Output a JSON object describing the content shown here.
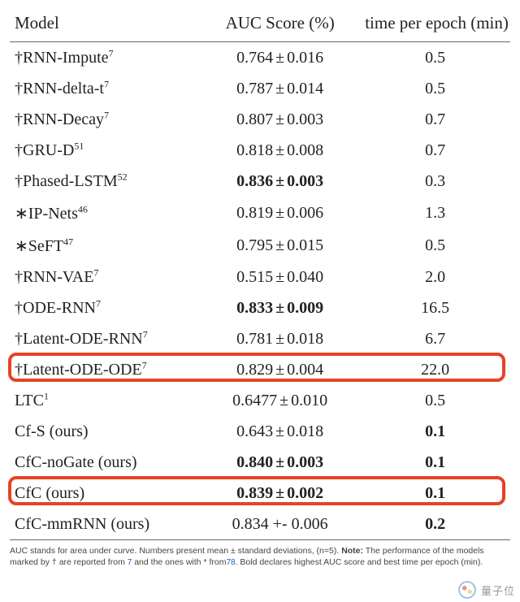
{
  "table": {
    "columns": {
      "model": "Model",
      "auc": "AUC Score (%)",
      "time": "time per epoch (min)"
    },
    "font_family": "Palatino",
    "header_fontsize": 21,
    "cell_fontsize": 20,
    "border_color": "#666666",
    "highlight_color": "#e74226",
    "highlight_border_width": 4,
    "highlight_border_radius": 10,
    "background_color": "#ffffff",
    "text_color": "#222222",
    "col_widths_pct": [
      38,
      32,
      30
    ],
    "rows": [
      {
        "prefix": "†",
        "name": "RNN-Impute",
        "sup": "7",
        "auc_mean": "0.764",
        "auc_std": "0.016",
        "auc_bold": false,
        "time": "0.5",
        "time_bold": false
      },
      {
        "prefix": "†",
        "name": "RNN-delta-t",
        "sup": "7",
        "auc_mean": "0.787",
        "auc_std": "0.014",
        "auc_bold": false,
        "time": "0.5",
        "time_bold": false
      },
      {
        "prefix": "†",
        "name": "RNN-Decay",
        "sup": "7",
        "auc_mean": "0.807",
        "auc_std": "0.003",
        "auc_bold": false,
        "time": "0.7",
        "time_bold": false
      },
      {
        "prefix": "†",
        "name": "GRU-D",
        "sup": "51",
        "auc_mean": "0.818",
        "auc_std": "0.008",
        "auc_bold": false,
        "time": "0.7",
        "time_bold": false
      },
      {
        "prefix": "†",
        "name": "Phased-LSTM",
        "sup": "52",
        "auc_mean": "0.836",
        "auc_std": "0.003",
        "auc_bold": true,
        "time": "0.3",
        "time_bold": false
      },
      {
        "prefix": "∗",
        "name": "IP-Nets",
        "sup": "46",
        "auc_mean": "0.819",
        "auc_std": "0.006",
        "auc_bold": false,
        "time": "1.3",
        "time_bold": false
      },
      {
        "prefix": "∗",
        "name": "SeFT",
        "sup": "47",
        "auc_mean": "0.795",
        "auc_std": "0.015",
        "auc_bold": false,
        "time": "0.5",
        "time_bold": false
      },
      {
        "prefix": "†",
        "name": "RNN-VAE",
        "sup": "7",
        "auc_mean": "0.515",
        "auc_std": "0.040",
        "auc_bold": false,
        "time": "2.0",
        "time_bold": false
      },
      {
        "prefix": "†",
        "name": "ODE-RNN",
        "sup": "7",
        "auc_mean": "0.833",
        "auc_std": "0.009",
        "auc_bold": true,
        "time": "16.5",
        "time_bold": false
      },
      {
        "prefix": "†",
        "name": "Latent-ODE-RNN",
        "sup": "7",
        "auc_mean": "0.781",
        "auc_std": "0.018",
        "auc_bold": false,
        "time": "6.7",
        "time_bold": false
      },
      {
        "prefix": "†",
        "name": "Latent-ODE-ODE",
        "sup": "7",
        "auc_mean": "0.829",
        "auc_std": "0.004",
        "auc_bold": false,
        "time": "22.0",
        "time_bold": false,
        "highlight": true
      },
      {
        "prefix": "",
        "name": "LTC",
        "sup": "1",
        "auc_mean": "0.6477",
        "auc_std": "0.010",
        "auc_bold": false,
        "time": "0.5",
        "time_bold": false
      },
      {
        "prefix": "",
        "name": "Cf-S (ours)",
        "sup": "",
        "auc_mean": "0.643",
        "auc_std": "0.018",
        "auc_bold": false,
        "time": "0.1",
        "time_bold": true
      },
      {
        "prefix": "",
        "name": "CfC-noGate (ours)",
        "sup": "",
        "auc_mean": "0.840",
        "auc_std": "0.003",
        "auc_bold": true,
        "time": "0.1",
        "time_bold": true
      },
      {
        "prefix": "",
        "name": "CfC (ours)",
        "sup": "",
        "auc_mean": "0.839",
        "auc_std": "0.002",
        "auc_bold": true,
        "time": "0.1",
        "time_bold": true,
        "highlight": true
      },
      {
        "prefix": "",
        "name": "CfC-mmRNN (ours)",
        "sup": "",
        "auc_mean": "0.834 +- 0.006",
        "auc_std": null,
        "auc_bold": false,
        "time": "0.2",
        "time_bold": true
      }
    ]
  },
  "caption": {
    "part1": "AUC stands for area under curve. Numbers present mean ± standard deviations, (n=5). ",
    "note_label": "Note:",
    "part2": " The performance of the models marked by † are reported from ",
    "ref1": "7",
    "part3": " and the ones with * from",
    "ref2": "78",
    "part4": ". Bold declares highest AUC score and best time per epoch (min).",
    "fontsize": 10.5,
    "color": "#444444"
  },
  "watermark": {
    "text": "量子位",
    "logo_outer": "#3b8ad8",
    "logo_red": "#e74226",
    "logo_yellow": "#f3c13a"
  }
}
